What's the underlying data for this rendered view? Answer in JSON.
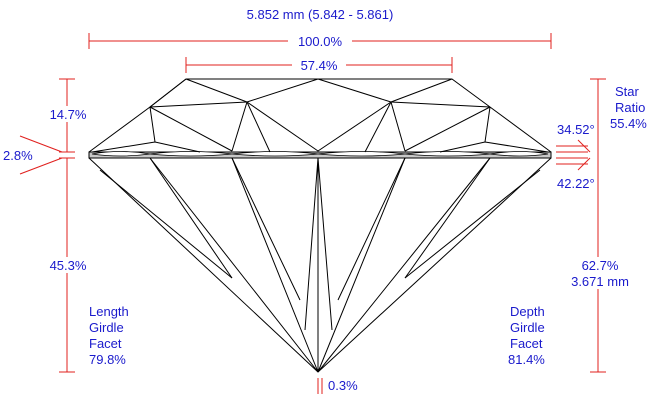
{
  "colors": {
    "label": "#1a1acc",
    "dimension_line": "#e0201e",
    "outline": "#000000",
    "girdle_fill": "#c8c8c8"
  },
  "diameter": {
    "mm": "5.852 mm (5.842 - 5.861)",
    "percent": "100.0%"
  },
  "table": {
    "percent": "57.4%"
  },
  "crown": {
    "height": "14.7%",
    "angle": "34.52°"
  },
  "girdle": {
    "thickness": "2.8%"
  },
  "star_ratio": {
    "line1": "Star",
    "line2": "Ratio",
    "value": "55.4%"
  },
  "pavilion": {
    "depth": "45.3%",
    "angle": "42.22°"
  },
  "total_depth": {
    "percent": "62.7%",
    "mm": "3.671 mm"
  },
  "culet": {
    "value": "0.3%"
  },
  "length_girdle_facet": {
    "line1": "Length",
    "line2": "Girdle",
    "line3": "Facet",
    "value": "79.8%"
  },
  "depth_girdle_facet": {
    "line1": "Depth",
    "line2": "Girdle",
    "line3": "Facet",
    "value": "81.4%"
  }
}
